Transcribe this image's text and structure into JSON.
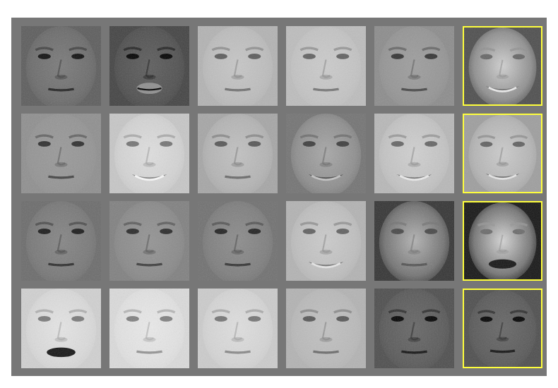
{
  "colors": {
    "background": "#ffffff",
    "panel": "#777777",
    "highlight_border": "#ffff3c"
  },
  "grid": {
    "rows": 4,
    "columns": 6
  },
  "tiles": [
    [
      {
        "icon": "face-image",
        "tone": 0.36,
        "face": 0.48,
        "expr": "neutral",
        "highlight": false
      },
      {
        "icon": "face-image",
        "tone": 0.26,
        "face": 0.36,
        "expr": "pout",
        "highlight": false
      },
      {
        "icon": "face-image",
        "tone": 0.7,
        "face": 0.78,
        "expr": "neutral",
        "highlight": false
      },
      {
        "icon": "face-image",
        "tone": 0.74,
        "face": 0.8,
        "expr": "neutral",
        "highlight": false
      },
      {
        "icon": "face-image",
        "tone": 0.55,
        "face": 0.62,
        "expr": "neutral",
        "highlight": false
      },
      {
        "icon": "face-image",
        "tone": 0.3,
        "face": 0.82,
        "expr": "smile",
        "highlight": true
      }
    ],
    [
      {
        "icon": "face-image",
        "tone": 0.56,
        "face": 0.6,
        "expr": "neutral",
        "highlight": false
      },
      {
        "icon": "face-image",
        "tone": 0.78,
        "face": 0.88,
        "expr": "smile",
        "highlight": false
      },
      {
        "icon": "face-image",
        "tone": 0.65,
        "face": 0.76,
        "expr": "neutral",
        "highlight": false
      },
      {
        "icon": "face-image",
        "tone": 0.45,
        "face": 0.66,
        "expr": "smile",
        "highlight": false
      },
      {
        "icon": "face-image",
        "tone": 0.72,
        "face": 0.82,
        "expr": "smile",
        "highlight": false
      },
      {
        "icon": "face-image",
        "tone": 0.62,
        "face": 0.8,
        "expr": "smile",
        "highlight": true
      }
    ],
    [
      {
        "icon": "face-image",
        "tone": 0.42,
        "face": 0.52,
        "expr": "neutral",
        "highlight": false
      },
      {
        "icon": "face-image",
        "tone": 0.5,
        "face": 0.58,
        "expr": "neutral",
        "highlight": false
      },
      {
        "icon": "face-image",
        "tone": 0.44,
        "face": 0.55,
        "expr": "neutral",
        "highlight": false
      },
      {
        "icon": "face-image",
        "tone": 0.7,
        "face": 0.8,
        "expr": "smile",
        "highlight": false
      },
      {
        "icon": "face-image",
        "tone": 0.2,
        "face": 0.7,
        "expr": "neutral",
        "highlight": false
      },
      {
        "icon": "face-image",
        "tone": 0.08,
        "face": 0.84,
        "expr": "lips",
        "highlight": true
      }
    ],
    [
      {
        "icon": "face-image",
        "tone": 0.82,
        "face": 0.9,
        "expr": "lips",
        "highlight": false
      },
      {
        "icon": "face-image",
        "tone": 0.86,
        "face": 0.92,
        "expr": "neutral",
        "highlight": false
      },
      {
        "icon": "face-image",
        "tone": 0.8,
        "face": 0.88,
        "expr": "neutral",
        "highlight": false
      },
      {
        "icon": "face-image",
        "tone": 0.7,
        "face": 0.76,
        "expr": "neutral",
        "highlight": false
      },
      {
        "icon": "face-image",
        "tone": 0.3,
        "face": 0.4,
        "expr": "neutral",
        "highlight": false
      },
      {
        "icon": "face-image",
        "tone": 0.3,
        "face": 0.4,
        "expr": "neutral",
        "highlight": true
      }
    ]
  ]
}
